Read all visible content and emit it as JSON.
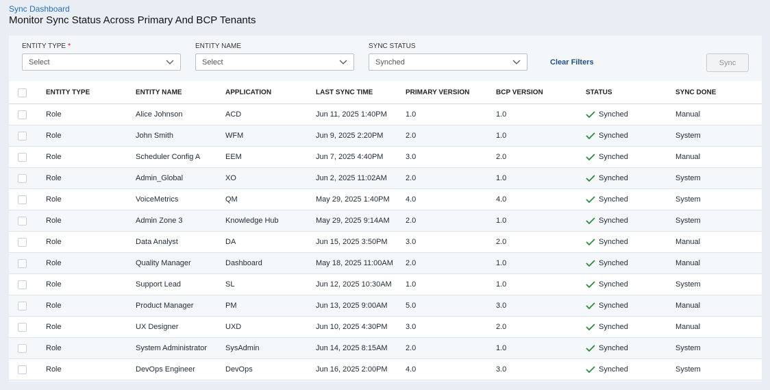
{
  "header": {
    "breadcrumb": "Sync Dashboard",
    "title": "Monitor Sync Status Across Primary And BCP Tenants"
  },
  "filters": [
    {
      "label": "ENTITY TYPE",
      "required_mark": "*",
      "value": "Select"
    },
    {
      "label": "ENTITY NAME",
      "value": "Select"
    },
    {
      "label": "SYNC STATUS",
      "value": "Synched"
    }
  ],
  "clear_filters": "Clear Filters",
  "sync_button": "Sync",
  "table": {
    "columns": [
      "ENTITY TYPE",
      "ENTITY NAME",
      "APPLICATION",
      "LAST SYNC TIME",
      "PRIMARY VERSION",
      "BCP VERSION",
      "STATUS",
      "SYNC DONE"
    ],
    "rows": [
      [
        "Role",
        "Alice Johnson",
        "ACD",
        "Jun 11, 2025 1:40PM",
        "1.0",
        "1.0",
        "Synched",
        "Manual"
      ],
      [
        "Role",
        "John Smith",
        "WFM",
        "Jun 9, 2025 2:20PM",
        "2.0",
        "1.0",
        "Synched",
        "System"
      ],
      [
        "Role",
        "Scheduler Config A",
        "EEM",
        "Jun 7, 2025 4:40PM",
        "3.0",
        "2.0",
        "Synched",
        "Manual"
      ],
      [
        "Role",
        "Admin_Global",
        "XO",
        "Jun 2, 2025 11:02AM",
        "2.0",
        "1.0",
        "Synched",
        "System"
      ],
      [
        "Role",
        "VoiceMetrics",
        "QM",
        "May 29, 2025 1:40PM",
        "4.0",
        "4.0",
        "Synched",
        "System"
      ],
      [
        "Role",
        "Admin Zone 3",
        "Knowledge Hub",
        "May 29, 2025 9:14AM",
        "2.0",
        "1.0",
        "Synched",
        "System"
      ],
      [
        "Role",
        "Data Analyst",
        "DA",
        "Jun 15, 2025 3:50PM",
        "3.0",
        "2.0",
        "Synched",
        "Manual"
      ],
      [
        "Role",
        "Quality Manager",
        "Dashboard",
        "May 18, 2025 11:00AM",
        "2.0",
        "1.0",
        "Synched",
        "Manual"
      ],
      [
        "Role",
        "Support Lead",
        "SL",
        "Jun 12, 2025 10:30AM",
        "1.0",
        "1.0",
        "Synched",
        "System"
      ],
      [
        "Role",
        "Product Manager",
        "PM",
        "Jun 13, 2025 9:00AM",
        "5.0",
        "3.0",
        "Synched",
        "Manual"
      ],
      [
        "Role",
        "UX Designer",
        "UXD",
        "Jun 10, 2025 4:30PM",
        "3.0",
        "2.0",
        "Synched",
        "Manual"
      ],
      [
        "Role",
        "System Administrator",
        "SysAdmin",
        "Jun 14, 2025 8:15AM",
        "2.0",
        "1.0",
        "Synched",
        "System"
      ],
      [
        "Role",
        "DevOps Engineer",
        "DevOps",
        "Jun 16, 2025 2:00PM",
        "4.0",
        "3.0",
        "Synched",
        "System"
      ]
    ]
  }
}
